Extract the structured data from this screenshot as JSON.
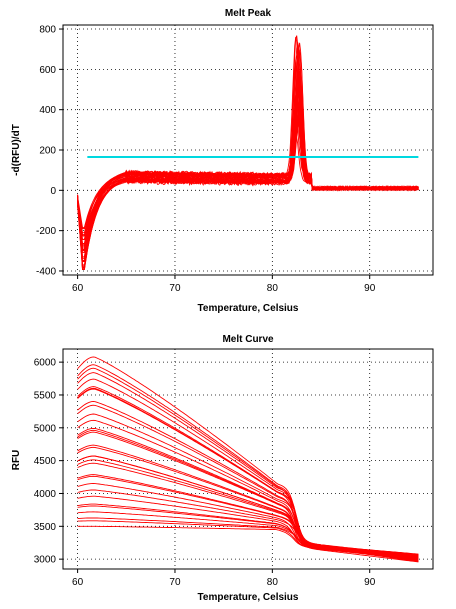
{
  "chart_data": [
    {
      "id": "melt-peak",
      "type": "line",
      "title": "Melt Peak",
      "xlabel": "Temperature, Celsius",
      "ylabel": "-d(RFU)/dT",
      "xlim": [
        58.5,
        96.5
      ],
      "ylim": [
        -420,
        820
      ],
      "xticks": [
        60,
        70,
        80,
        90
      ],
      "yticks": [
        -400,
        -200,
        0,
        200,
        400,
        600,
        800
      ],
      "grid": true,
      "legend": "none",
      "series_color": "#ff0000",
      "series_count": 32,
      "x_range": [
        60,
        95
      ],
      "baseline_plateau": 65,
      "peak_temperature": 82.6,
      "peak_max": 780,
      "peak_min": 240,
      "initial_min": -400,
      "threshold": {
        "value": 165,
        "x_range": [
          61,
          95
        ],
        "color": "#00d8e0"
      }
    },
    {
      "id": "melt-curve",
      "type": "line",
      "title": "Melt Curve",
      "xlabel": "Temperature, Celsius",
      "ylabel": "RFU",
      "xlim": [
        58.5,
        96.5
      ],
      "ylim": [
        2850,
        6200
      ],
      "xticks": [
        60,
        70,
        80,
        90
      ],
      "yticks": [
        3000,
        3500,
        4000,
        4500,
        5000,
        5500,
        6000
      ],
      "grid": true,
      "legend": "none",
      "series_color": "#ff0000",
      "series_count": 32,
      "x_range": [
        60,
        95
      ],
      "peak_x": 61.7,
      "start_range": [
        3500,
        5900
      ],
      "peak_range": [
        3500,
        6080
      ],
      "transition_temperature": 82.5,
      "pre_transition_range": [
        3450,
        4150
      ],
      "post_transition_range": [
        3130,
        3250
      ],
      "end_range": [
        2950,
        3080
      ]
    }
  ]
}
